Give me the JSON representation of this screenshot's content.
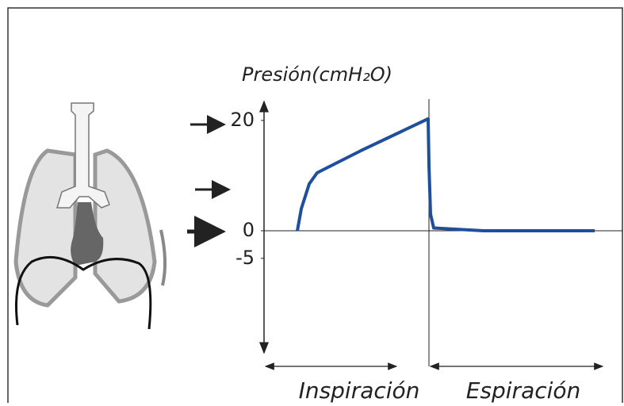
{
  "chart_data": {
    "type": "line",
    "title": "Presión(cmH₂O)",
    "x": [
      0.4,
      0.45,
      0.55,
      0.65,
      1.2,
      2.05,
      2.06,
      2.08,
      2.12,
      2.75,
      4.15
    ],
    "series": [
      {
        "color": "#1f4e9c",
        "values": [
          0,
          4,
          8.5,
          10.5,
          14.5,
          20.3,
          12,
          3,
          0.5,
          0,
          0
        ]
      }
    ],
    "xlim": [
      0,
      4.5
    ],
    "ylim": [
      -22,
      23
    ],
    "yticks": [
      20,
      0,
      -5
    ],
    "phases": [
      "Inspiración",
      "Espiración"
    ]
  }
}
